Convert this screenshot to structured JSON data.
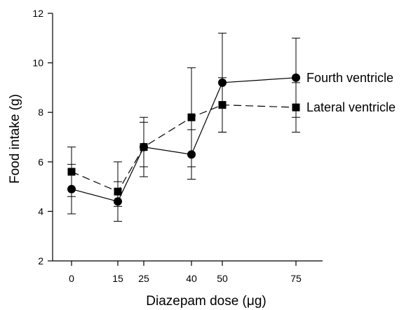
{
  "chart_data": {
    "type": "line",
    "xlabel": "Diazepam dose (μg)",
    "ylabel": "Food intake (g)",
    "x_categories": [
      "0",
      "15",
      "25",
      "40",
      "50",
      "75"
    ],
    "x": [
      0,
      15,
      25,
      40,
      50,
      75
    ],
    "ylim": [
      2,
      12
    ],
    "yticks": [
      2,
      4,
      6,
      8,
      10,
      12
    ],
    "grid": false,
    "series": [
      {
        "name": "Fourth ventricle",
        "marker": "circle",
        "line_style": "solid",
        "values": [
          4.9,
          4.4,
          6.6,
          6.3,
          9.2,
          9.4
        ],
        "err_low": [
          3.9,
          3.6,
          5.4,
          5.3,
          7.2,
          7.8
        ],
        "err_high": [
          5.9,
          5.2,
          7.8,
          7.3,
          11.2,
          11.0
        ]
      },
      {
        "name": "Lateral ventricle",
        "marker": "square",
        "line_style": "dashed",
        "values": [
          5.6,
          4.8,
          6.6,
          7.8,
          8.3,
          8.2
        ],
        "err_low": [
          4.6,
          4.2,
          5.8,
          5.8,
          7.2,
          7.2
        ],
        "err_high": [
          6.6,
          6.0,
          7.6,
          9.8,
          9.4,
          9.2
        ]
      }
    ]
  }
}
